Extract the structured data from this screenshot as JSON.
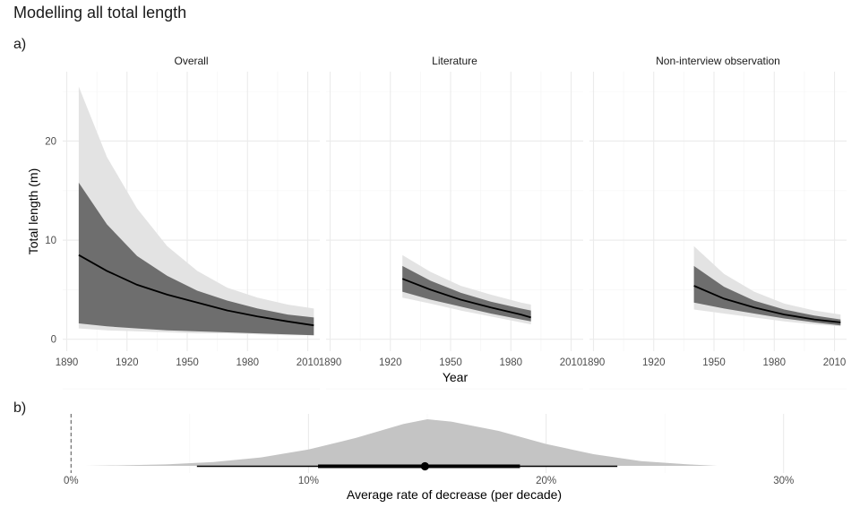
{
  "page": {
    "title": "Modelling all total length",
    "tag_a": "a)",
    "tag_b": "b)"
  },
  "colors": {
    "outer_band": "#e3e3e3",
    "inner_band": "#6e6e6e",
    "median_line": "#000000",
    "density": "#c4c4c4",
    "grid_major": "#ebebeb",
    "grid_minor": "#f4f4f4",
    "zero_line": "#555555"
  },
  "chart_data": [
    {
      "type": "area",
      "title": "",
      "xlabel": "Year",
      "ylabel": "Total length (m)",
      "xlim": [
        1888,
        2016
      ],
      "ylim": [
        -1.2,
        27
      ],
      "x_ticks": [
        1890,
        1920,
        1950,
        1980,
        2010
      ],
      "y_ticks": [
        0,
        10,
        20
      ],
      "grid": true,
      "panels": [
        {
          "name": "Overall",
          "series": [
            {
              "x": 1896,
              "outer_low": 1.1,
              "outer_high": 25.5,
              "inner_low": 1.6,
              "inner_high": 15.8,
              "median": 8.5
            },
            {
              "x": 1910,
              "outer_low": 0.9,
              "outer_high": 18.4,
              "inner_low": 1.3,
              "inner_high": 11.6,
              "median": 6.9
            },
            {
              "x": 1925,
              "outer_low": 0.8,
              "outer_high": 13.2,
              "inner_low": 1.1,
              "inner_high": 8.4,
              "median": 5.5
            },
            {
              "x": 1940,
              "outer_low": 0.7,
              "outer_high": 9.4,
              "inner_low": 0.9,
              "inner_high": 6.4,
              "median": 4.5
            },
            {
              "x": 1955,
              "outer_low": 0.6,
              "outer_high": 6.9,
              "inner_low": 0.8,
              "inner_high": 4.9,
              "median": 3.7
            },
            {
              "x": 1970,
              "outer_low": 0.6,
              "outer_high": 5.2,
              "inner_low": 0.7,
              "inner_high": 3.9,
              "median": 2.9
            },
            {
              "x": 1985,
              "outer_low": 0.5,
              "outer_high": 4.2,
              "inner_low": 0.6,
              "inner_high": 3.1,
              "median": 2.3
            },
            {
              "x": 2000,
              "outer_low": 0.4,
              "outer_high": 3.5,
              "inner_low": 0.5,
              "inner_high": 2.5,
              "median": 1.8
            },
            {
              "x": 2013,
              "outer_low": 0.4,
              "outer_high": 3.1,
              "inner_low": 0.4,
              "inner_high": 2.2,
              "median": 1.4
            }
          ]
        },
        {
          "name": "Literature",
          "series": [
            {
              "x": 1926,
              "outer_low": 4.2,
              "outer_high": 8.5,
              "inner_low": 4.8,
              "inner_high": 7.4,
              "median": 6.1
            },
            {
              "x": 1940,
              "outer_low": 3.6,
              "outer_high": 6.8,
              "inner_low": 4.0,
              "inner_high": 5.9,
              "median": 5.0
            },
            {
              "x": 1955,
              "outer_low": 2.9,
              "outer_high": 5.4,
              "inner_low": 3.3,
              "inner_high": 4.7,
              "median": 4.0
            },
            {
              "x": 1970,
              "outer_low": 2.3,
              "outer_high": 4.5,
              "inner_low": 2.6,
              "inner_high": 3.8,
              "median": 3.2
            },
            {
              "x": 1985,
              "outer_low": 1.7,
              "outer_high": 3.7,
              "inner_low": 2.0,
              "inner_high": 3.1,
              "median": 2.5
            },
            {
              "x": 1990,
              "outer_low": 1.5,
              "outer_high": 3.5,
              "inner_low": 1.8,
              "inner_high": 2.9,
              "median": 2.2
            }
          ]
        },
        {
          "name": "Non-interview observation",
          "series": [
            {
              "x": 1940,
              "outer_low": 3.0,
              "outer_high": 9.4,
              "inner_low": 3.7,
              "inner_high": 7.4,
              "median": 5.4
            },
            {
              "x": 1955,
              "outer_low": 2.6,
              "outer_high": 6.6,
              "inner_low": 3.1,
              "inner_high": 5.3,
              "median": 4.1
            },
            {
              "x": 1970,
              "outer_low": 2.2,
              "outer_high": 4.8,
              "inner_low": 2.6,
              "inner_high": 3.9,
              "median": 3.2
            },
            {
              "x": 1985,
              "outer_low": 1.8,
              "outer_high": 3.6,
              "inner_low": 2.1,
              "inner_high": 3.0,
              "median": 2.5
            },
            {
              "x": 2000,
              "outer_low": 1.5,
              "outer_high": 2.9,
              "inner_low": 1.7,
              "inner_high": 2.4,
              "median": 2.0
            },
            {
              "x": 2013,
              "outer_low": 1.3,
              "outer_high": 2.5,
              "inner_low": 1.4,
              "inner_high": 2.0,
              "median": 1.7
            }
          ]
        }
      ]
    },
    {
      "type": "area",
      "title": "",
      "xlabel": "Average rate of decrease (per decade)",
      "ylabel": "",
      "xlim": [
        -0.0035,
        0.3265
      ],
      "x_ticks": [
        0,
        0.1,
        0.2,
        0.3
      ],
      "x_tick_labels": [
        "0%",
        "10%",
        "20%",
        "30%"
      ],
      "reference_line": 0,
      "grid": true,
      "density": [
        {
          "x": 0.006,
          "y": 0.0
        },
        {
          "x": 0.02,
          "y": 0.01
        },
        {
          "x": 0.04,
          "y": 0.03
        },
        {
          "x": 0.06,
          "y": 0.08
        },
        {
          "x": 0.08,
          "y": 0.18
        },
        {
          "x": 0.1,
          "y": 0.35
        },
        {
          "x": 0.12,
          "y": 0.6
        },
        {
          "x": 0.14,
          "y": 0.9
        },
        {
          "x": 0.15,
          "y": 1.0
        },
        {
          "x": 0.16,
          "y": 0.95
        },
        {
          "x": 0.18,
          "y": 0.75
        },
        {
          "x": 0.2,
          "y": 0.47
        },
        {
          "x": 0.22,
          "y": 0.25
        },
        {
          "x": 0.24,
          "y": 0.1
        },
        {
          "x": 0.26,
          "y": 0.03
        },
        {
          "x": 0.272,
          "y": 0.0
        }
      ],
      "point_estimate": 0.149,
      "interval_66": [
        0.104,
        0.189
      ],
      "interval_95": [
        0.053,
        0.23
      ]
    }
  ]
}
